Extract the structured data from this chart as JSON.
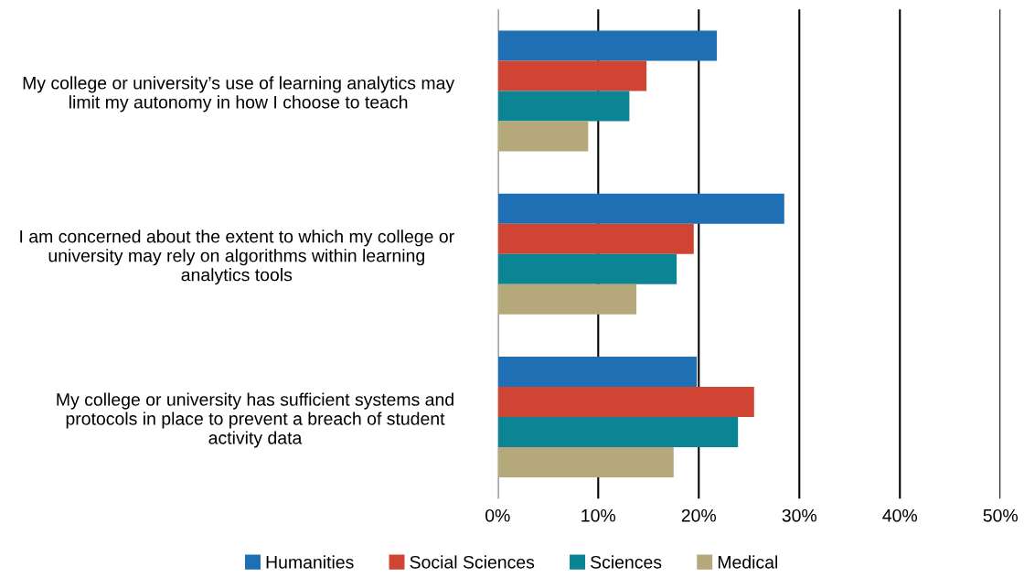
{
  "chart_data": {
    "type": "bar",
    "orientation": "horizontal",
    "categories": [
      "My college or university’s use of learning analytics may limit my autonomy in how I choose to teach",
      "I am concerned about the extent to which my college or university may rely on algorithms within learning analytics tools",
      "My college or university has sufficient systems and protocols in place to prevent a breach of student activity data"
    ],
    "series": [
      {
        "name": "Humanities",
        "color": "#1f6fb4",
        "values": [
          21.8,
          28.5,
          19.8
        ]
      },
      {
        "name": "Social Sciences",
        "color": "#d04434",
        "values": [
          14.8,
          19.5,
          25.5
        ]
      },
      {
        "name": "Sciences",
        "color": "#0b8494",
        "values": [
          13.1,
          17.8,
          23.9
        ]
      },
      {
        "name": "Medical",
        "color": "#b5a97b",
        "values": [
          9.0,
          13.8,
          17.5
        ]
      }
    ],
    "xlim": [
      0,
      50
    ],
    "xticks": [
      {
        "value": 0,
        "label": "0%"
      },
      {
        "value": 10,
        "label": "10%"
      },
      {
        "value": 20,
        "label": "20%"
      },
      {
        "value": 30,
        "label": "30%"
      },
      {
        "value": 40,
        "label": "40%"
      },
      {
        "value": 50,
        "label": "50%"
      }
    ],
    "grid": "x",
    "legend": "bottom"
  }
}
